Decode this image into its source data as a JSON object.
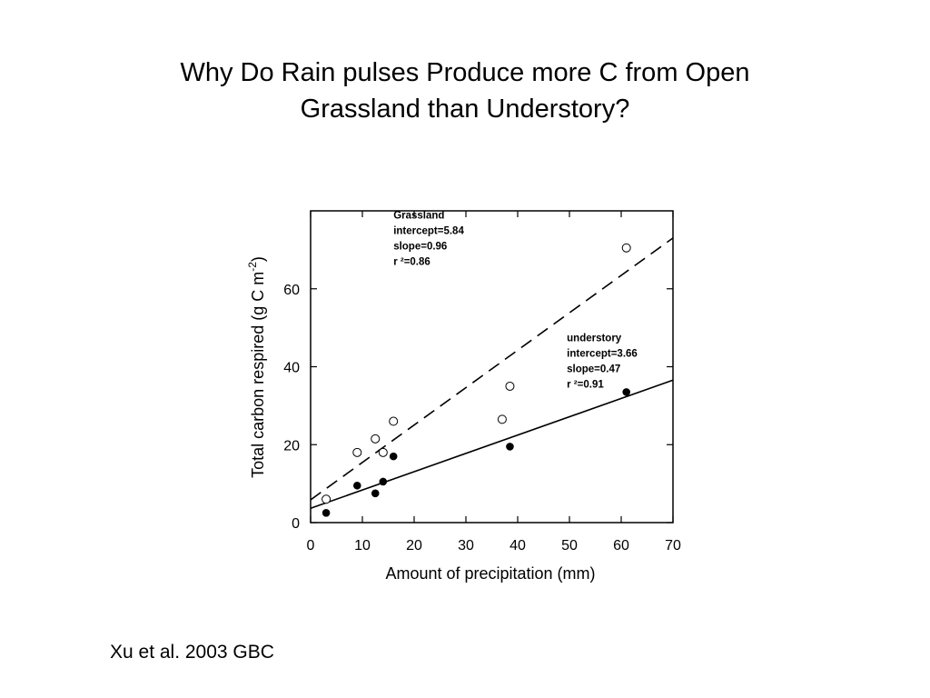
{
  "slide": {
    "title_line1": "Why Do Rain pulses Produce more C from Open",
    "title_line2": "Grassland than Understory?",
    "citation": "Xu et al. 2003 GBC"
  },
  "chart_data": {
    "type": "scatter",
    "title": "",
    "xlabel": "Amount of precipitation (mm)",
    "ylabel": "Total carbon respired (g C m",
    "ylabel_superscript": "-2",
    "ylabel_suffix": ")",
    "xlim": [
      0,
      70
    ],
    "ylim": [
      0,
      80
    ],
    "xticks": [
      0,
      10,
      20,
      30,
      40,
      50,
      60,
      70
    ],
    "yticks": [
      0,
      20,
      40,
      60
    ],
    "grid": false,
    "series": [
      {
        "marker": "open-circle",
        "points": [
          [
            3,
            6
          ],
          [
            9,
            18
          ],
          [
            12.5,
            21.5
          ],
          [
            14,
            18
          ],
          [
            16,
            26
          ],
          [
            37,
            26.5
          ],
          [
            38.5,
            35
          ],
          [
            61,
            70.5
          ]
        ],
        "fit": {
          "intercept": 5.84,
          "slope": 0.96,
          "style": "dashed"
        }
      },
      {
        "marker": "filled-circle",
        "points": [
          [
            3,
            2.5
          ],
          [
            9,
            9.5
          ],
          [
            12.5,
            7.5
          ],
          [
            14,
            10.5
          ],
          [
            16,
            17
          ],
          [
            38.5,
            19.5
          ],
          [
            61,
            33.5
          ]
        ],
        "fit": {
          "intercept": 3.66,
          "slope": 0.47,
          "style": "solid"
        }
      }
    ],
    "annotations": [
      {
        "lines": [
          "Grassland",
          "intercept=5.84",
          "slope=0.96",
          "r ²=0.86"
        ],
        "x": 16,
        "y": 78
      },
      {
        "lines": [
          "understory",
          "intercept=3.66",
          "slope=0.47",
          "r ²=0.91"
        ],
        "x": 49.5,
        "y": 46.5
      }
    ]
  }
}
